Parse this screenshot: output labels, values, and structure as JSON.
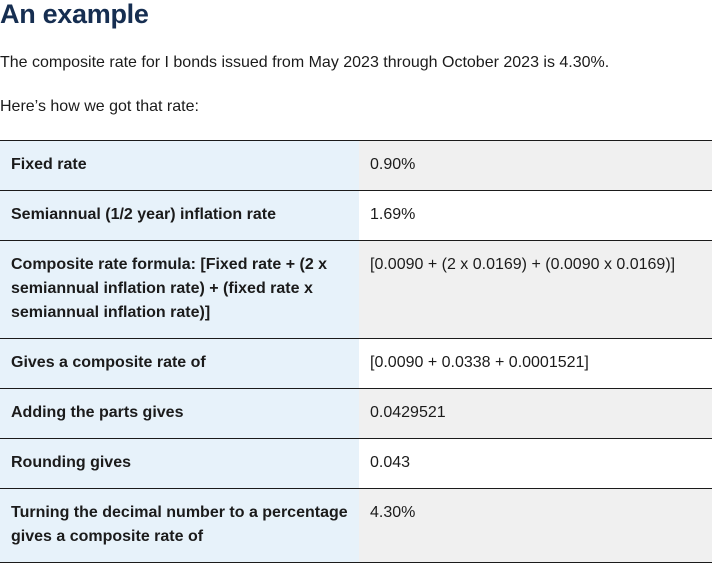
{
  "heading": "An example",
  "intro": "The composite rate for I bonds issued from May 2023 through October 2023 is 4.30%.",
  "lead": "Here’s how we got that rate:",
  "rows": [
    {
      "label": "Fixed rate",
      "value": "0.90%"
    },
    {
      "label": "Semiannual (1/2 year) inflation rate",
      "value": "1.69%"
    },
    {
      "label": "Composite rate formula: [Fixed rate + (2 x semiannual inflation rate) + (fixed rate x semiannual inflation rate)]",
      "value": "[0.0090 + (2 x 0.0169) + (0.0090 x 0.0169)]"
    },
    {
      "label": "Gives a composite rate of",
      "value": "[0.0090 + 0.0338 + 0.0001521]"
    },
    {
      "label": "Adding the parts gives",
      "value": "0.0429521"
    },
    {
      "label": "Rounding gives",
      "value": "0.043"
    },
    {
      "label": "Turning the decimal number to a percentage gives a composite rate of",
      "value": "4.30%"
    }
  ],
  "colors": {
    "heading": "#162e51",
    "label_cell_bg": "#e7f2fa",
    "value_cell_shaded_bg": "#f0f0f0",
    "border": "#1b1b1b"
  }
}
